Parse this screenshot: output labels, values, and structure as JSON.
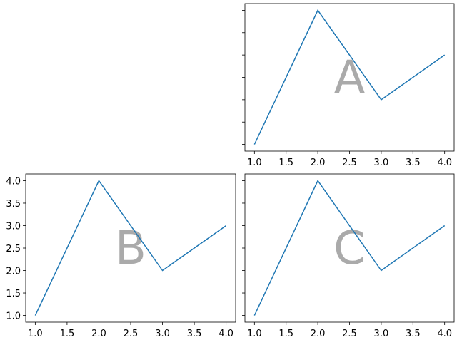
{
  "chart_data": [
    {
      "type": "line",
      "annotation": "A",
      "x": [
        1,
        2,
        3,
        4
      ],
      "series": [
        {
          "color": "#1f77b4",
          "values": [
            1,
            4,
            2,
            3
          ]
        }
      ],
      "xlim": [
        0.85,
        4.15
      ],
      "ylim": [
        0.85,
        4.15
      ],
      "xticks": [
        {
          "value": 1,
          "label": "1.0"
        },
        1.5,
        {
          "value": 2,
          "label": "2.0"
        },
        2.5,
        {
          "value": 3,
          "label": "3.0"
        },
        3.5,
        {
          "value": 4,
          "label": "4.0"
        }
      ],
      "yticks": [
        1,
        1.5,
        2,
        2.5,
        3,
        3.5,
        4
      ],
      "ytick_labels": false
    },
    {
      "type": "line",
      "annotation": "B",
      "x": [
        1,
        2,
        3,
        4
      ],
      "series": [
        {
          "color": "#1f77b4",
          "values": [
            1,
            4,
            2,
            3
          ]
        }
      ],
      "xlim": [
        0.85,
        4.15
      ],
      "ylim": [
        0.85,
        4.15
      ],
      "xticks": [
        {
          "value": 1,
          "label": "1.0"
        },
        1.5,
        {
          "value": 2,
          "label": "2.0"
        },
        2.5,
        {
          "value": 3,
          "label": "3.0"
        },
        3.5,
        {
          "value": 4,
          "label": "4.0"
        }
      ],
      "yticks": [
        {
          "value": 1,
          "label": "1.0"
        },
        1.5,
        {
          "value": 2,
          "label": "2.0"
        },
        2.5,
        {
          "value": 3,
          "label": "3.0"
        },
        3.5,
        {
          "value": 4,
          "label": "4.0"
        }
      ],
      "ytick_labels": true
    },
    {
      "type": "line",
      "annotation": "C",
      "x": [
        1,
        2,
        3,
        4
      ],
      "series": [
        {
          "color": "#1f77b4",
          "values": [
            1,
            4,
            2,
            3
          ]
        }
      ],
      "xlim": [
        0.85,
        4.15
      ],
      "ylim": [
        0.85,
        4.15
      ],
      "xticks": [
        {
          "value": 1,
          "label": "1.0"
        },
        1.5,
        {
          "value": 2,
          "label": "2.0"
        },
        2.5,
        {
          "value": 3,
          "label": "3.0"
        },
        3.5,
        {
          "value": 4,
          "label": "4.0"
        }
      ],
      "yticks": [
        1,
        1.5,
        2,
        2.5,
        3,
        3.5,
        4
      ],
      "ytick_labels": false
    }
  ]
}
